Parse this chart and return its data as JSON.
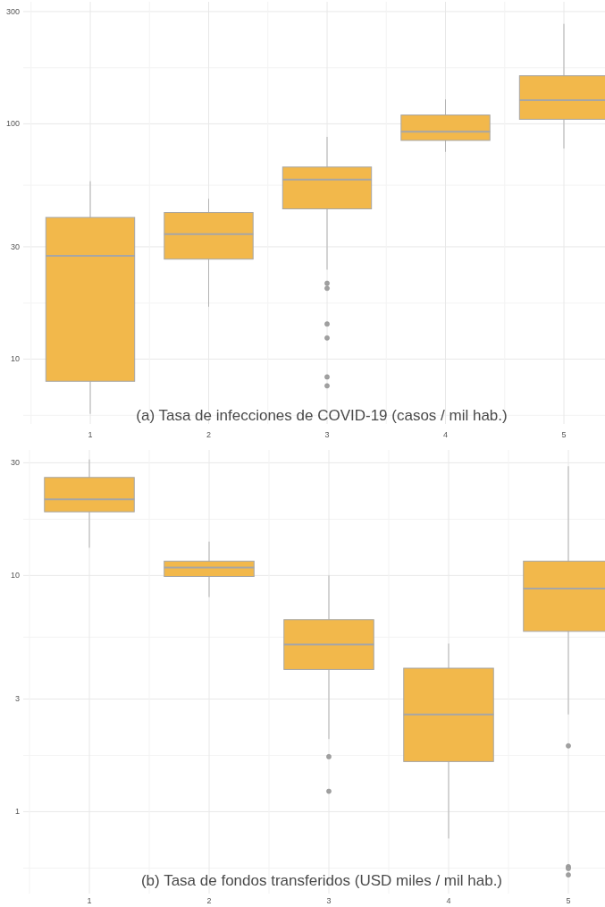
{
  "chart_data": [
    {
      "type": "box",
      "title": "(a) Tasa de infecciones de COVID-19 (casos / mil hab.)",
      "categories": [
        "1",
        "2",
        "3",
        "4",
        "5"
      ],
      "color": "#f2b84b",
      "log": "y",
      "grid": true,
      "ylim": [
        5.3,
        330
      ],
      "yticks": [
        {
          "value": 5.77,
          "label": null
        },
        10,
        {
          "value": 17.3,
          "label": null
        },
        30,
        {
          "value": 54.8,
          "label": null
        },
        100,
        {
          "value": 173,
          "label": null
        },
        300
      ],
      "boxes": [
        {
          "low": 5.85,
          "q1": 8.05,
          "median": 27.5,
          "q3": 40,
          "high": 57
        },
        {
          "low": 16.7,
          "q1": 26.6,
          "median": 34,
          "q3": 42,
          "high": 48
        },
        {
          "low": 24,
          "q1": 43.5,
          "median": 58,
          "q3": 65.5,
          "high": 88,
          "outliers": [
            21,
            20,
            14.1,
            12.3,
            8.4,
            7.7
          ]
        },
        {
          "low": 76,
          "q1": 85,
          "median": 92.5,
          "q3": 109,
          "high": 127
        },
        {
          "low": 78.5,
          "q1": 104.5,
          "median": 126,
          "q3": 160,
          "high": 266
        }
      ]
    },
    {
      "type": "box",
      "title": "(b) Tasa de fondos transferidos (USD miles / mil hab.)",
      "categories": [
        "1",
        "2",
        "3",
        "4",
        "5"
      ],
      "color": "#f2b84b",
      "log": "y",
      "grid": true,
      "ylim": [
        0.45,
        34
      ],
      "yticks": [
        {
          "value": 0.577,
          "label": null
        },
        1,
        {
          "value": 1.73,
          "label": null
        },
        3,
        {
          "value": 5.48,
          "label": null
        },
        10,
        {
          "value": 17.3,
          "label": null
        },
        30
      ],
      "boxes": [
        {
          "low": 13.1,
          "q1": 18.6,
          "median": 21,
          "q3": 26,
          "high": 31
        },
        {
          "low": 8.1,
          "q1": 9.9,
          "median": 10.8,
          "q3": 11.5,
          "high": 13.9
        },
        {
          "low": 2.03,
          "q1": 4,
          "median": 5.1,
          "q3": 6.5,
          "high": 10,
          "outliers": [
            1.71,
            1.22
          ]
        },
        {
          "low": 0.77,
          "q1": 1.63,
          "median": 2.58,
          "q3": 4.05,
          "high": 5.15
        },
        {
          "low": 2.58,
          "q1": 5.8,
          "median": 8.8,
          "q3": 11.5,
          "high": 29,
          "outliers": [
            1.9,
            0.585,
            0.575,
            0.54
          ]
        }
      ]
    }
  ]
}
